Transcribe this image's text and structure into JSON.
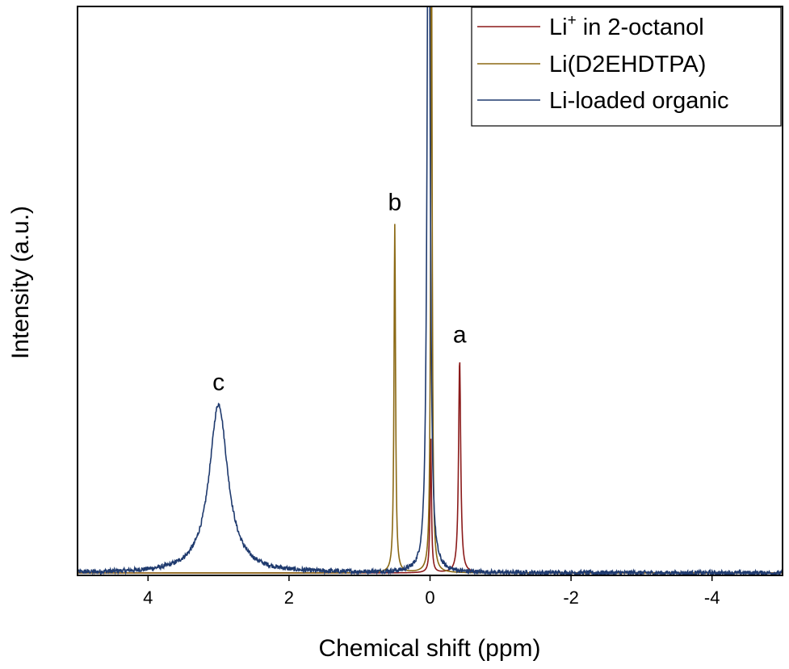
{
  "chart_data": {
    "type": "line",
    "title": "",
    "xlabel": "Chemical shift (ppm)",
    "ylabel": "Intensity (a.u.)",
    "xlim": [
      5,
      -5
    ],
    "x_reversed": true,
    "ylim": [
      0,
      1
    ],
    "y_ticks_shown": false,
    "x_ticks": [
      4,
      2,
      0,
      -2,
      -4
    ],
    "x_tick_labels": [
      "4",
      "2",
      "0",
      "-2",
      "-4"
    ],
    "grid": false,
    "legend_position": "top-right",
    "legend": [
      {
        "key": "li_octanol",
        "prefix": "Li",
        "sup": "+",
        "suffix": " in 2-octanol",
        "color": "#8b1a1a"
      },
      {
        "key": "li_d2ehdtpa",
        "prefix": "Li(D2EHDTPA)",
        "sup": "",
        "suffix": "",
        "color": "#8b6914"
      },
      {
        "key": "li_loaded",
        "prefix": "Li-loaded organic",
        "sup": "",
        "suffix": "",
        "color": "#1f3a6e"
      }
    ],
    "series": [
      {
        "key": "li_octanol",
        "peaks": [
          {
            "center": -0.42,
            "height": 0.38,
            "width": 0.018
          },
          {
            "center": -0.01,
            "height": 0.24,
            "width": 0.012
          }
        ],
        "noise": 0.0
      },
      {
        "key": "li_d2ehdtpa",
        "peaks": [
          {
            "center": 0.5,
            "height": 0.62,
            "width": 0.013
          },
          {
            "center": -0.02,
            "height": 1.2,
            "width": 0.012
          }
        ],
        "noise": 0.0
      },
      {
        "key": "li_loaded",
        "peaks": [
          {
            "center": 3.0,
            "height": 0.3,
            "width": 0.16
          },
          {
            "center": 0.02,
            "height": 1.6,
            "width": 0.022
          }
        ],
        "noise": 0.004
      }
    ],
    "annotations": [
      {
        "text": "a",
        "x": -0.42,
        "y": 0.41
      },
      {
        "text": "b",
        "x": 0.5,
        "y": 0.645
      },
      {
        "text": "c",
        "x": 3.0,
        "y": 0.325
      }
    ]
  }
}
